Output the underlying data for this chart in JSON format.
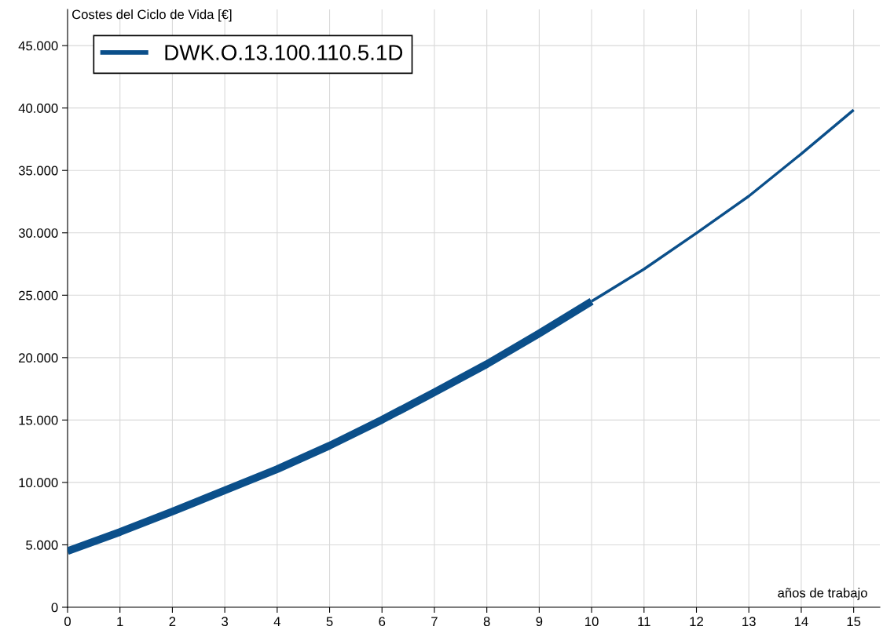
{
  "chart_data": {
    "type": "line",
    "xlabel": "años de trabajo",
    "ylabel": "Costes del Ciclo de Vida [€]",
    "series": [
      {
        "name": "DWK.O.13.100.110.5.1D",
        "color": "#0b4f8a",
        "x": [
          0,
          1,
          2,
          3,
          4,
          5,
          6,
          7,
          8,
          9,
          10
        ],
        "values": [
          4500,
          6030,
          7670,
          9370,
          11060,
          12950,
          15020,
          17220,
          19480,
          21940,
          24510
        ]
      },
      {
        "color": "#0b4f8a",
        "x": [
          10,
          11,
          12,
          13,
          14,
          15
        ],
        "values": [
          24510,
          27090,
          29980,
          32940,
          36330,
          39850
        ]
      }
    ],
    "xlim": [
      0,
      15.5
    ],
    "xticks": [
      0,
      1,
      2,
      3,
      4,
      5,
      6,
      7,
      8,
      9,
      10,
      11,
      12,
      13,
      14,
      15
    ],
    "ylim": [
      0,
      47900
    ],
    "yticks": [
      {
        "value": 0,
        "label": "0"
      },
      {
        "value": 5000,
        "label": "5.000"
      },
      {
        "value": 10000,
        "label": "10.000"
      },
      {
        "value": 15000,
        "label": "15.000"
      },
      {
        "value": 20000,
        "label": "20.000"
      },
      {
        "value": 25000,
        "label": "25.000"
      },
      {
        "value": 30000,
        "label": "30.000"
      },
      {
        "value": 35000,
        "label": "35.000"
      },
      {
        "value": 40000,
        "label": "40.000"
      },
      {
        "value": 45000,
        "label": "45.000"
      }
    ],
    "grid": true,
    "legend": "top left",
    "marker": "none",
    "line_style": "solid"
  }
}
